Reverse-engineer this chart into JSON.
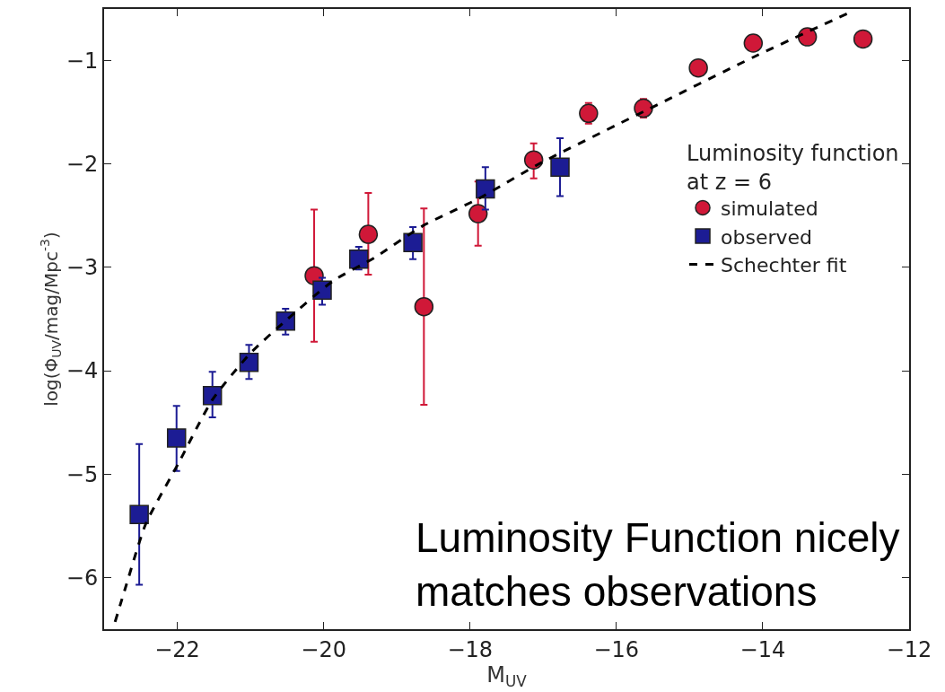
{
  "chart_data": {
    "type": "scatter",
    "xlabel": "M$_{UV}$",
    "ylabel": "log(Φ$_{UV}$/mag/Mpc$^{-3}$)",
    "legend_title": "Luminosity function\nat z = 6",
    "xlim": [
      -23,
      -12
    ],
    "xticks": [
      -22,
      -20,
      -18,
      -16,
      -14,
      -12
    ],
    "ylim": [
      -6.5,
      -0.5
    ],
    "yticks": [
      -1,
      -2,
      -3,
      -4,
      -5,
      -6
    ],
    "legend": "right",
    "series": [
      {
        "name": "simulated",
        "marker": "circle",
        "color": "#d01838",
        "x": [
          -20.13,
          -19.39,
          -18.63,
          -17.89,
          -17.13,
          -16.38,
          -15.63,
          -14.88,
          -14.13,
          -13.39,
          -12.63
        ],
        "values": [
          -3.08,
          -2.68,
          -3.38,
          -2.48,
          -1.96,
          -1.51,
          -1.46,
          -1.07,
          -0.83,
          -0.77,
          -0.79
        ],
        "errors": [
          [
            -3.72,
            -2.44
          ],
          [
            -3.07,
            -2.28
          ],
          [
            -4.33,
            -2.43
          ],
          [
            -2.79,
            -2.17
          ],
          [
            -2.14,
            -1.8
          ],
          [
            -1.61,
            -1.41
          ],
          [
            -1.55,
            -1.37
          ],
          null,
          null,
          null,
          null
        ]
      },
      {
        "name": "observed",
        "marker": "square",
        "color": "#1c1c94",
        "x": [
          -22.52,
          -22.01,
          -21.52,
          -21.02,
          -20.52,
          -20.02,
          -19.52,
          -18.78,
          -17.79,
          -16.77
        ],
        "values": [
          -5.39,
          -4.65,
          -4.24,
          -3.92,
          -3.52,
          -3.22,
          -2.92,
          -2.76,
          -2.24,
          -2.03
        ],
        "errors": [
          [
            -6.07,
            -4.71
          ],
          [
            -4.97,
            -4.34
          ],
          [
            -4.45,
            -4.01
          ],
          [
            -4.08,
            -3.75
          ],
          [
            -3.65,
            -3.4
          ],
          [
            -3.36,
            -3.1
          ],
          [
            -3.02,
            -2.8
          ],
          [
            -2.92,
            -2.61
          ],
          [
            -2.44,
            -2.03
          ],
          [
            -2.31,
            -1.75
          ]
        ]
      },
      {
        "name": "Schechter fit",
        "type": "line",
        "line_style": "dashed",
        "marker": "none",
        "color": "#000000",
        "x": [
          -22.85,
          -22.7,
          -22.43,
          -21.98,
          -21.52,
          -21.0,
          -20.51,
          -19.87,
          -19.29,
          -18.65,
          -17.87,
          -17.06,
          -15.62,
          -14.11,
          -12.8
        ],
        "values": [
          -6.43,
          -6.08,
          -5.48,
          -4.89,
          -4.28,
          -3.83,
          -3.51,
          -3.13,
          -2.9,
          -2.6,
          -2.33,
          -2.0,
          -1.49,
          -0.96,
          -0.53
        ]
      }
    ],
    "annotations": [
      "Luminosity Function nicely\nmatches observations"
    ]
  }
}
